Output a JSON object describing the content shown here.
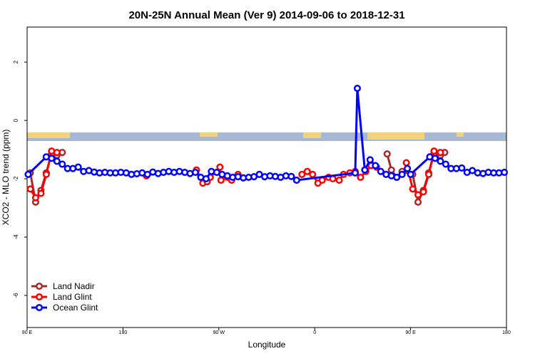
{
  "chart_data": {
    "type": "line",
    "title": "20N-25N Annual Mean (Ver 9)   2014-09-06 to 2018-12-31",
    "x_label": "Longitude",
    "y_label": "XCO2 - MLO trend (ppm)",
    "xlim": [
      90,
      540
    ],
    "ylim": [
      -7.1,
      3.2
    ],
    "xticks": [
      {
        "value": 90,
        "label": "90 E"
      },
      {
        "value": 180,
        "label": "180"
      },
      {
        "value": 270,
        "label": "90 W"
      },
      {
        "value": 360,
        "label": "0"
      },
      {
        "value": 450,
        "label": "90 E"
      },
      {
        "value": 540,
        "label": "180"
      }
    ],
    "yticks": [
      -6,
      -4,
      -2,
      0,
      2
    ],
    "legend": "bottom-left",
    "series": [
      {
        "name": "Land Nadir",
        "color": "#a52a2a",
        "x": [
          93,
          98,
          103,
          108,
          113,
          118,
          123,
          300,
          428,
          432,
          437,
          442,
          452,
          457,
          462,
          467,
          472,
          478,
          482
        ],
        "values": [
          -1.8,
          -2.8,
          -2.4,
          -1.8,
          -1.15,
          -1.2,
          -1.1,
          null,
          -1.15,
          -1.7,
          -1.95,
          -1.75,
          -1.85,
          -2.8,
          -2.4,
          -1.8,
          -1.15,
          -1.2,
          -1.1
        ]
      },
      {
        "name": "Land Glint",
        "color": "#ff0000",
        "x": [
          93,
          98,
          103,
          108,
          113,
          118,
          160,
          202,
          240,
          249,
          255,
          259,
          262,
          271,
          272,
          278,
          282,
          288,
          320,
          348,
          353,
          358,
          363,
          367,
          373,
          377,
          383,
          387,
          393,
          398,
          403,
          408,
          413,
          418,
          430,
          446,
          452,
          457,
          462,
          467,
          472,
          478
        ],
        "values": [
          -2.35,
          -2.65,
          -2.5,
          -1.85,
          -1.05,
          -1.1,
          null,
          -1.9,
          null,
          -1.7,
          -2.15,
          -2.1,
          -1.95,
          -1.6,
          -2.05,
          -1.95,
          -2.05,
          -1.85,
          null,
          -1.85,
          -1.75,
          -1.85,
          -2.15,
          -2.05,
          -1.95,
          -2.0,
          -2.05,
          -1.85,
          -1.8,
          -1.75,
          -1.95,
          -1.75,
          -1.55,
          -1.6,
          null,
          -1.45,
          -2.35,
          -2.55,
          -2.45,
          -1.85,
          -1.05,
          -1.1
        ]
      },
      {
        "name": "Ocean Glint",
        "color": "#0000ff",
        "x": [
          91,
          108,
          113,
          118,
          123,
          128,
          133,
          138,
          143,
          148,
          153,
          158,
          163,
          168,
          173,
          178,
          183,
          188,
          193,
          198,
          203,
          208,
          213,
          218,
          223,
          228,
          233,
          238,
          243,
          248,
          253,
          258,
          263,
          268,
          273,
          278,
          283,
          288,
          293,
          298,
          303,
          308,
          313,
          318,
          323,
          328,
          333,
          338,
          343,
          398,
          400,
          407,
          412,
          417,
          422,
          427,
          432,
          437,
          442,
          447,
          450,
          468,
          473,
          478,
          483,
          488,
          493,
          498,
          503,
          508,
          513,
          518,
          523,
          528,
          533,
          538
        ],
        "values": [
          -1.85,
          -1.25,
          -1.3,
          -1.4,
          -1.5,
          -1.65,
          -1.65,
          -1.6,
          -1.75,
          -1.72,
          -1.77,
          -1.8,
          -1.78,
          -1.8,
          -1.8,
          -1.78,
          -1.8,
          -1.85,
          -1.83,
          -1.8,
          -1.85,
          -1.77,
          -1.82,
          -1.78,
          -1.75,
          -1.78,
          -1.75,
          -1.78,
          -1.82,
          -1.78,
          -1.95,
          -2.0,
          -1.75,
          -1.78,
          -1.85,
          -1.9,
          -1.95,
          -1.93,
          -1.97,
          -1.95,
          -1.93,
          -1.85,
          -1.93,
          -1.9,
          -1.92,
          -1.95,
          -1.9,
          -1.92,
          -2.05,
          -1.8,
          1.1,
          -1.7,
          -1.35,
          -1.55,
          -1.75,
          -1.85,
          -1.9,
          -1.95,
          -1.85,
          -1.65,
          -1.85,
          -1.25,
          -1.3,
          -1.4,
          -1.5,
          -1.65,
          -1.65,
          -1.63,
          -1.78,
          -1.72,
          -1.8,
          -1.82,
          -1.78,
          -1.8,
          -1.8,
          -1.78
        ]
      }
    ]
  }
}
